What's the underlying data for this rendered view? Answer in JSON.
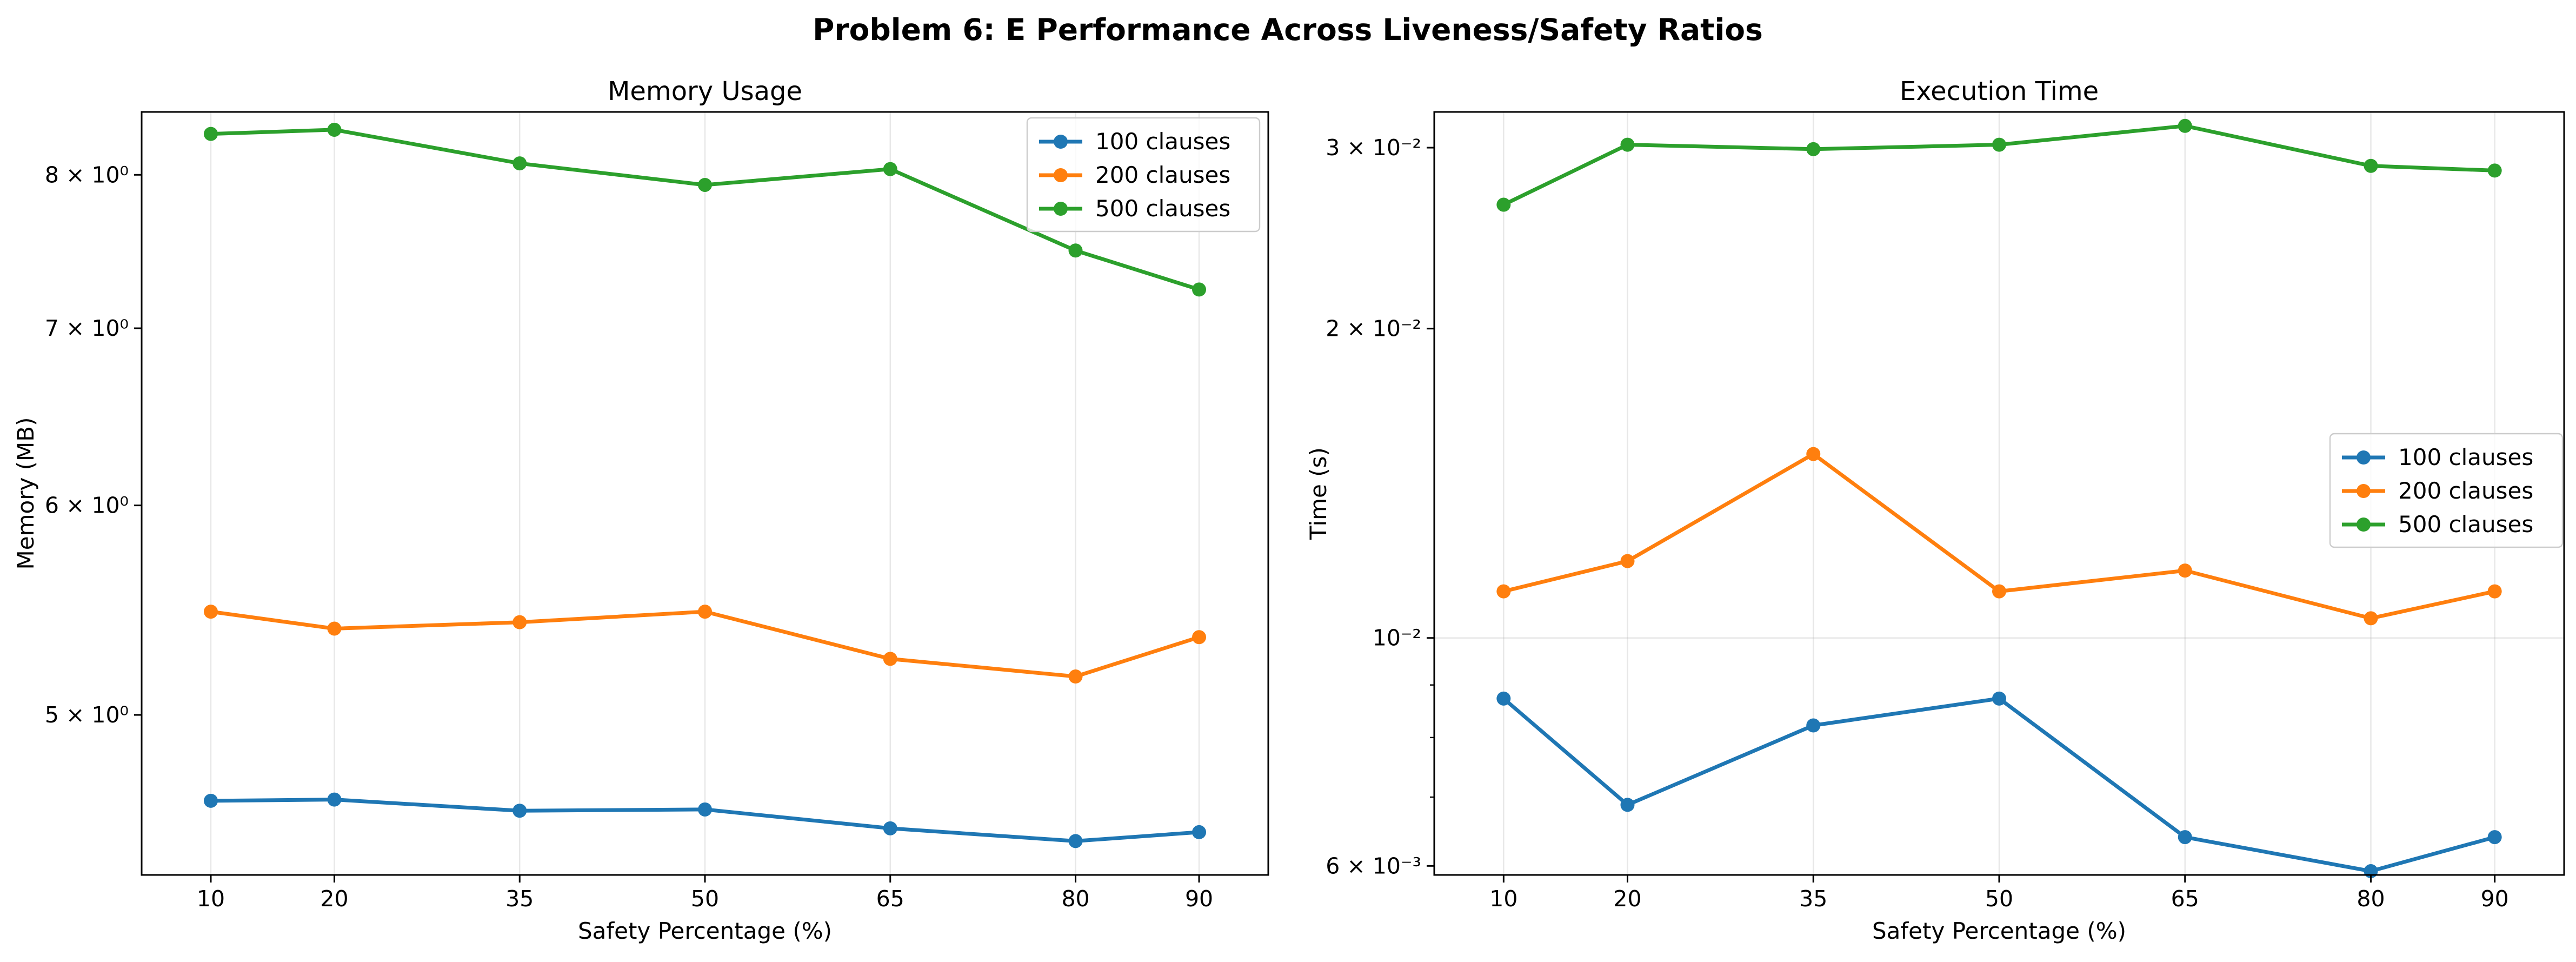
{
  "suptitle": "Problem 6: E Performance Across Liveness/Safety Ratios",
  "chart_data": [
    {
      "type": "line",
      "title": "Memory Usage",
      "xlabel": "Safety Percentage (%)",
      "ylabel": "Memory (MB)",
      "yscale": "log",
      "ylim": [
        4.35,
        8.45
      ],
      "grid": "x",
      "legend_position": "upper-right",
      "x": [
        10,
        20,
        35,
        50,
        65,
        80,
        90
      ],
      "yticks": [
        {
          "value": 5,
          "label": "5 × 10⁰"
        },
        {
          "value": 6,
          "label": "6 × 10⁰"
        },
        {
          "value": 7,
          "label": "7 × 10⁰"
        },
        {
          "value": 8,
          "label": "8 × 10⁰"
        }
      ],
      "series": [
        {
          "name": "100 clauses",
          "color": "#1f77b4",
          "values": [
            4.64,
            4.645,
            4.6,
            4.605,
            4.53,
            4.48,
            4.515
          ]
        },
        {
          "name": "200 clauses",
          "color": "#ff7f0e",
          "values": [
            5.47,
            5.39,
            5.42,
            5.47,
            5.25,
            5.17,
            5.35
          ]
        },
        {
          "name": "500 clauses",
          "color": "#2ca02c",
          "values": [
            8.29,
            8.32,
            8.08,
            7.93,
            8.04,
            7.49,
            7.24
          ]
        }
      ]
    },
    {
      "type": "line",
      "title": "Execution Time",
      "xlabel": "Safety Percentage (%)",
      "ylabel": "Time (s)",
      "yscale": "log",
      "ylim": [
        0.00588,
        0.0325
      ],
      "grid": "both",
      "legend_position": "center-right",
      "x": [
        10,
        20,
        35,
        50,
        65,
        80,
        90
      ],
      "yticks": [
        {
          "value": 0.006,
          "label": "6 × 10⁻³"
        },
        {
          "value": 0.01,
          "label": "10⁻²"
        },
        {
          "value": 0.02,
          "label": "2 × 10⁻²"
        },
        {
          "value": 0.03,
          "label": "3 × 10⁻²"
        }
      ],
      "minor_yticks": [
        0.007,
        0.008,
        0.009
      ],
      "series": [
        {
          "name": "100 clauses",
          "color": "#1f77b4",
          "values": [
            0.00873,
            0.00688,
            0.00822,
            0.00873,
            0.0064,
            0.00593,
            0.0064
          ]
        },
        {
          "name": "200 clauses",
          "color": "#ff7f0e",
          "values": [
            0.0111,
            0.01188,
            0.0151,
            0.0111,
            0.01163,
            0.01045,
            0.0111
          ]
        },
        {
          "name": "500 clauses",
          "color": "#2ca02c",
          "values": [
            0.0264,
            0.0302,
            0.0299,
            0.0302,
            0.0315,
            0.0288,
            0.0285
          ]
        }
      ]
    }
  ]
}
